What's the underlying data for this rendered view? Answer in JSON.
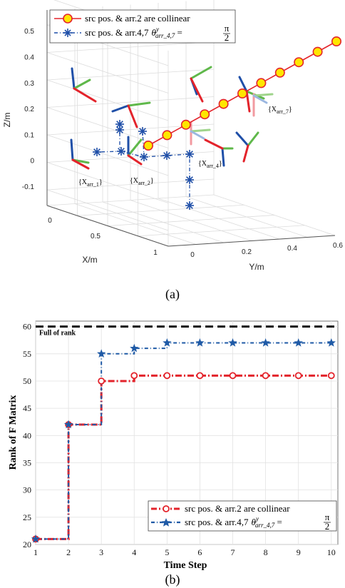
{
  "chart_data": [
    {
      "type": "scatter3d",
      "caption": "(a)",
      "xlabel": "X/m",
      "ylabel": "Y/m",
      "zlabel": "Z/m",
      "x_ticks": [
        "0",
        "0.5",
        "1"
      ],
      "y_ticks": [
        "0",
        "0.2",
        "0.4",
        "0.6"
      ],
      "z_ticks": [
        "-0.1",
        "0",
        "0.1",
        "0.2",
        "0.3",
        "0.4",
        "0.5"
      ],
      "grid": true,
      "legend_position": "top-left",
      "series": [
        {
          "name": "src pos. & arr.2 are collinear",
          "marker": "circle",
          "color": "#e3232b",
          "fill": "#ffe600",
          "count": 11
        },
        {
          "name": "src pos. & arr.4,7",
          "marker": "asterisk",
          "color": "#1f4fa8",
          "count": 10
        }
      ],
      "legend_formula": {
        "symbol": "θ",
        "superscript": "y",
        "subscript": "arr_4,7",
        "rhs_num": "π",
        "rhs_den": "2"
      },
      "frame_labels": [
        {
          "key": "arr_1",
          "text": "{X",
          "sub": "arr_1",
          "close": "}"
        },
        {
          "key": "arr_2",
          "text": "{X",
          "sub": "arr_2",
          "close": "}"
        },
        {
          "key": "arr_4",
          "text": "{X",
          "sub": "arr_4",
          "close": "}"
        },
        {
          "key": "arr_7",
          "text": "{X",
          "sub": "arr_7",
          "close": "}"
        }
      ]
    },
    {
      "type": "line",
      "caption": "(b)",
      "xlabel": "Time Step",
      "ylabel": "Rank of F Matrix",
      "x": [
        1,
        2,
        3,
        4,
        5,
        6,
        7,
        8,
        9,
        10
      ],
      "xlim": [
        1,
        10.2
      ],
      "ylim": [
        20,
        61
      ],
      "y_ticks": [
        20,
        25,
        30,
        35,
        40,
        45,
        50,
        55,
        60
      ],
      "grid": true,
      "legend_position": "bottom-right",
      "reference_line": {
        "label": "Full of rank",
        "value": 60
      },
      "series": [
        {
          "name": "src pos. & arr.2 are collinear",
          "values": [
            21,
            42,
            50,
            51,
            51,
            51,
            51,
            51,
            51,
            51
          ],
          "color": "#e3232b",
          "marker": "circle",
          "style": "dash-dot",
          "step": true
        },
        {
          "name": "src pos. & arr.4,7",
          "values": [
            21,
            42,
            55,
            56,
            57,
            57,
            57,
            57,
            57,
            57
          ],
          "color": "#1f5aa6",
          "marker": "star",
          "style": "dash-dot",
          "step": true
        }
      ],
      "legend_formula": {
        "symbol": "θ",
        "superscript": "y",
        "subscript": "arr_4,7",
        "rhs_num": "π",
        "rhs_den": "2"
      }
    }
  ]
}
